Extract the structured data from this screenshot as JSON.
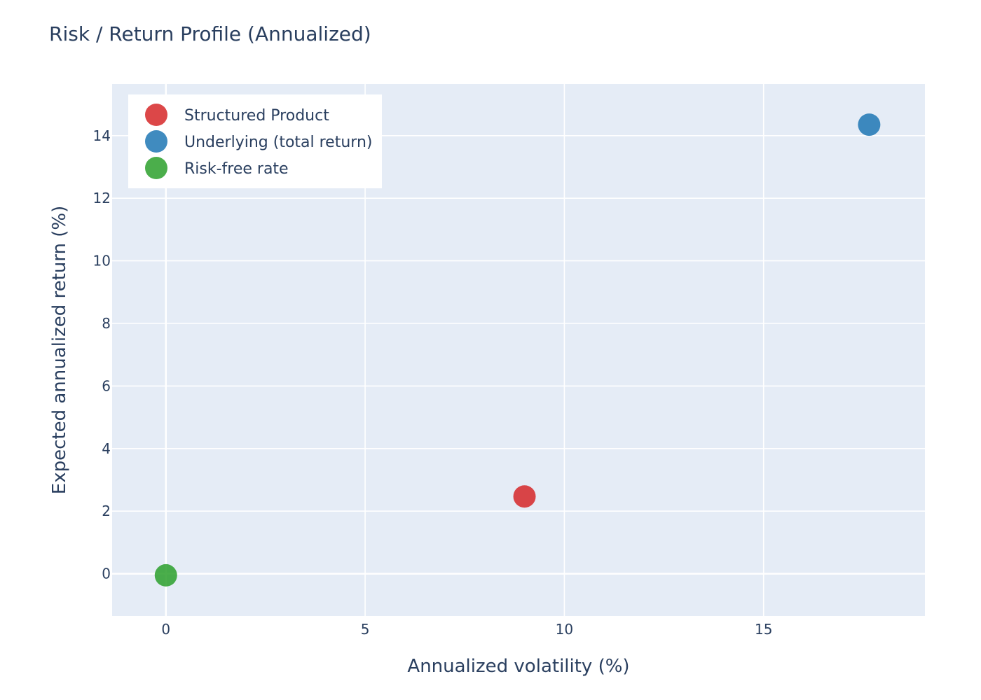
{
  "colors": {
    "plot_background": "#e5ecf6",
    "grid": "#ffffff",
    "text": "#2a3f5f",
    "legend_background": "#ffffff"
  },
  "chart_data": {
    "type": "scatter",
    "title": "Risk / Return Profile (Annualized)",
    "xlabel": "Annualized volatility (%)",
    "ylabel": "Expected annualized return (%)",
    "xlim": [
      -1.35,
      19.05
    ],
    "ylim": [
      -1.35,
      15.65
    ],
    "x_ticks": [
      0,
      5,
      10,
      15
    ],
    "y_ticks": [
      0,
      2,
      4,
      6,
      8,
      10,
      12,
      14
    ],
    "grid": true,
    "legend_position": "top-left",
    "series": [
      {
        "name": "Structured Product",
        "color": "#d62728",
        "x": [
          9.0
        ],
        "y": [
          2.47
        ]
      },
      {
        "name": "Underlying (total return)",
        "color": "#1f77b4",
        "x": [
          17.65
        ],
        "y": [
          14.35
        ]
      },
      {
        "name": "Risk-free rate",
        "color": "#2ca02c",
        "x": [
          0.0
        ],
        "y": [
          -0.05
        ]
      }
    ]
  }
}
